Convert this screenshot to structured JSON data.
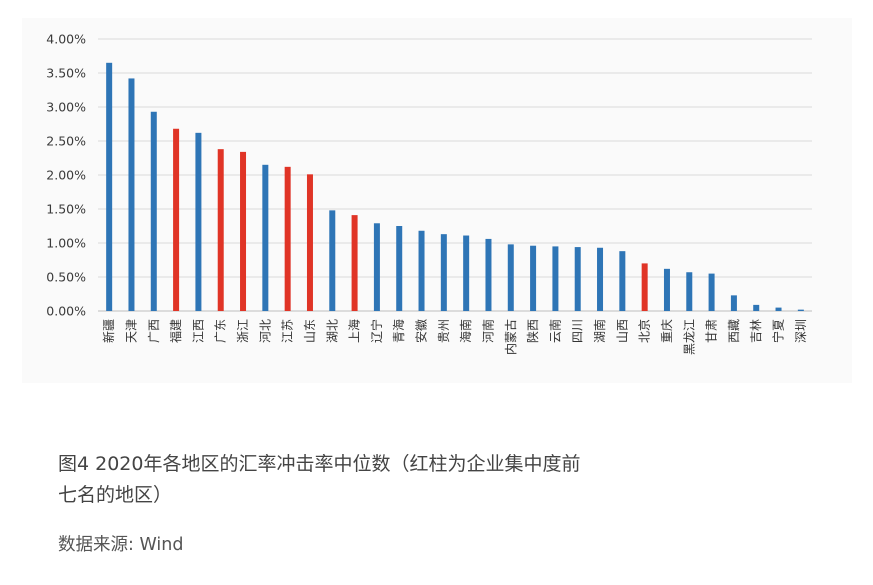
{
  "chart_data": {
    "type": "bar",
    "categories": [
      "新疆",
      "天津",
      "广西",
      "福建",
      "江西",
      "广东",
      "浙江",
      "河北",
      "江苏",
      "山东",
      "湖北",
      "上海",
      "辽宁",
      "青海",
      "安徽",
      "贵州",
      "海南",
      "河南",
      "内蒙古",
      "陕西",
      "云南",
      "四川",
      "湖南",
      "山西",
      "北京",
      "重庆",
      "黑龙江",
      "甘肃",
      "西藏",
      "吉林",
      "宁夏",
      "深圳"
    ],
    "values": [
      3.65,
      3.42,
      2.93,
      2.68,
      2.62,
      2.38,
      2.34,
      2.15,
      2.12,
      2.01,
      1.48,
      1.41,
      1.29,
      1.25,
      1.18,
      1.13,
      1.11,
      1.06,
      0.98,
      0.96,
      0.95,
      0.94,
      0.93,
      0.88,
      0.7,
      0.62,
      0.57,
      0.55,
      0.23,
      0.09,
      0.05,
      0.02
    ],
    "highlight": [
      false,
      false,
      false,
      true,
      false,
      true,
      true,
      false,
      true,
      true,
      false,
      true,
      false,
      false,
      false,
      false,
      false,
      false,
      false,
      false,
      false,
      false,
      false,
      false,
      true,
      false,
      false,
      false,
      false,
      false,
      false,
      false
    ],
    "yticks": [
      "0.00%",
      "0.50%",
      "1.00%",
      "1.50%",
      "2.00%",
      "2.50%",
      "3.00%",
      "3.50%",
      "4.00%"
    ],
    "ylim": [
      0,
      4.0
    ],
    "grid": true,
    "colors": {
      "default": "#2e75b6",
      "highlight": "#e03426",
      "grid": "#d9d9d9",
      "axis": "#bfbfbf"
    }
  },
  "caption": {
    "line1": "图4 2020年各地区的汇率冲击率中位数（红柱为企业集中度前",
    "line2": "七名的地区）"
  },
  "source": "数据来源: Wind"
}
